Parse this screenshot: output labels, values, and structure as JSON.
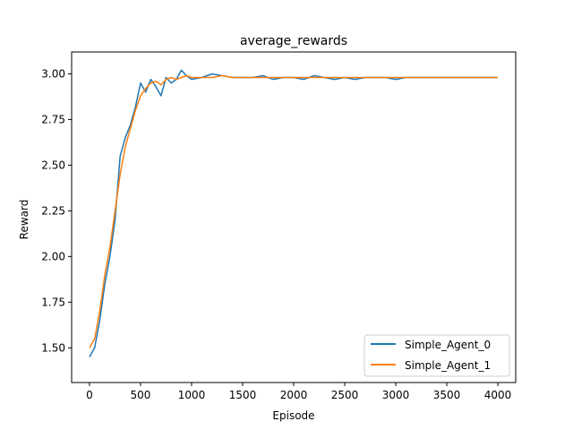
{
  "chart_data": {
    "type": "line",
    "title": "average_rewards",
    "xlabel": "Episode",
    "ylabel": "Reward",
    "xlim": [
      -175,
      4175
    ],
    "ylim": [
      1.31,
      3.12
    ],
    "xticks": [
      0,
      500,
      1000,
      1500,
      2000,
      2500,
      3000,
      3500,
      4000
    ],
    "yticks": [
      1.5,
      1.75,
      2.0,
      2.25,
      2.5,
      2.75,
      3.0
    ],
    "ytick_labels": [
      "1.50",
      "1.75",
      "2.00",
      "2.25",
      "2.50",
      "2.75",
      "3.00"
    ],
    "grid": false,
    "legend_position": "lower-right",
    "colors": [
      "#1f77b4",
      "#ff7f0e"
    ],
    "series": [
      {
        "name": "Simple_Agent_0",
        "x": [
          0,
          50,
          100,
          150,
          200,
          250,
          300,
          350,
          400,
          450,
          500,
          550,
          600,
          650,
          700,
          750,
          800,
          850,
          900,
          950,
          1000,
          1100,
          1200,
          1300,
          1400,
          1500,
          1600,
          1700,
          1800,
          1900,
          2000,
          2100,
          2200,
          2300,
          2400,
          2500,
          2600,
          2700,
          2800,
          2900,
          3000,
          3100,
          3200,
          3300,
          3400,
          3500,
          3600,
          3700,
          3800,
          3900,
          4000
        ],
        "values": [
          1.45,
          1.5,
          1.65,
          1.85,
          2.0,
          2.2,
          2.55,
          2.65,
          2.72,
          2.82,
          2.95,
          2.9,
          2.97,
          2.93,
          2.88,
          2.98,
          2.95,
          2.97,
          3.02,
          2.99,
          2.97,
          2.98,
          3.0,
          2.99,
          2.98,
          2.98,
          2.98,
          2.99,
          2.97,
          2.98,
          2.98,
          2.97,
          2.99,
          2.98,
          2.97,
          2.98,
          2.97,
          2.98,
          2.98,
          2.98,
          2.97,
          2.98,
          2.98,
          2.98,
          2.98,
          2.98,
          2.98,
          2.98,
          2.98,
          2.98,
          2.98
        ]
      },
      {
        "name": "Simple_Agent_1",
        "x": [
          0,
          50,
          100,
          150,
          200,
          250,
          300,
          350,
          400,
          450,
          500,
          550,
          600,
          650,
          700,
          750,
          800,
          850,
          900,
          950,
          1000,
          1100,
          1200,
          1300,
          1400,
          1500,
          1600,
          1700,
          1800,
          1900,
          2000,
          2100,
          2200,
          2300,
          2400,
          2500,
          2600,
          2700,
          2800,
          2900,
          3000,
          3100,
          3200,
          3300,
          3400,
          3500,
          3600,
          3700,
          3800,
          3900,
          4000
        ],
        "values": [
          1.5,
          1.55,
          1.7,
          1.9,
          2.05,
          2.25,
          2.45,
          2.6,
          2.7,
          2.8,
          2.88,
          2.92,
          2.95,
          2.96,
          2.94,
          2.97,
          2.98,
          2.97,
          2.98,
          2.99,
          2.98,
          2.98,
          2.98,
          2.99,
          2.98,
          2.98,
          2.98,
          2.98,
          2.98,
          2.98,
          2.98,
          2.98,
          2.98,
          2.98,
          2.98,
          2.98,
          2.98,
          2.98,
          2.98,
          2.98,
          2.98,
          2.98,
          2.98,
          2.98,
          2.98,
          2.98,
          2.98,
          2.98,
          2.98,
          2.98,
          2.98
        ]
      }
    ]
  }
}
